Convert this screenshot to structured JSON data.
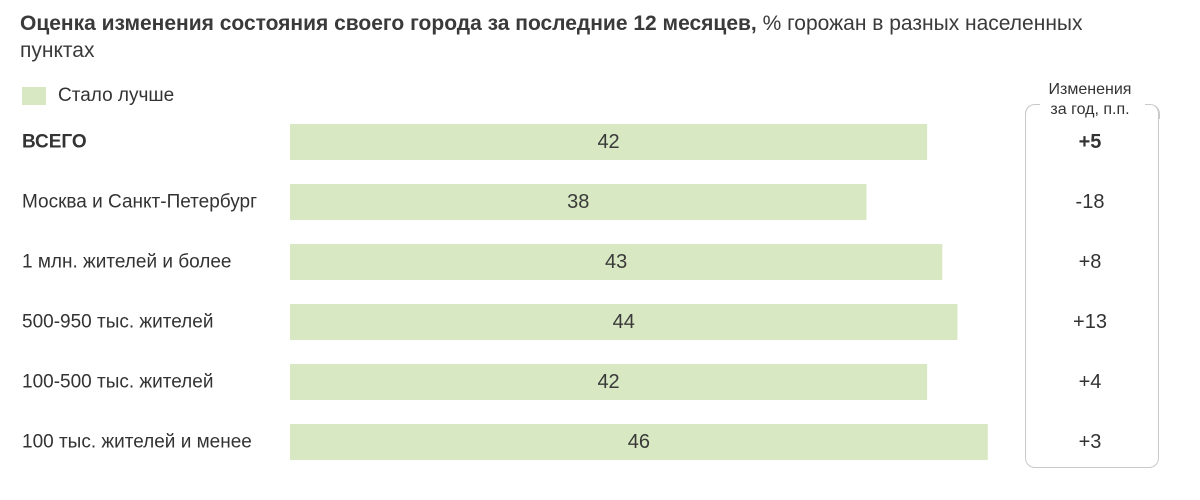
{
  "title": {
    "bold": "Оценка изменения состояния своего города за последние  12 месяцев,",
    "normal": " % горожан в разных населенных пунктах"
  },
  "legend": {
    "label": "Стало лучше",
    "color": "#d8e8c2"
  },
  "change_header": {
    "line1": "Изменения",
    "line2": "за год, п.п."
  },
  "colors": {
    "bar": "#d8e8c2",
    "text": "#333333",
    "box_border": "#c9c9c9"
  },
  "chart_data": {
    "type": "bar",
    "orientation": "horizontal",
    "categories": [
      "ВСЕГО",
      "Москва и Санкт-Петербург",
      "1 млн. жителей и более",
      "500-950 тыс. жителей",
      "100-500 тыс. жителей",
      "100 тыс. жителей и менее"
    ],
    "series": [
      {
        "name": "Стало лучше",
        "values": [
          42,
          38,
          43,
          44,
          42,
          46
        ]
      }
    ],
    "changes": [
      "+5",
      "-18",
      "+8",
      "+13",
      "+4",
      "+3"
    ],
    "bold_rows": [
      0
    ],
    "xlim": [
      0,
      46
    ],
    "grid": false,
    "legend_position": "top-left"
  }
}
